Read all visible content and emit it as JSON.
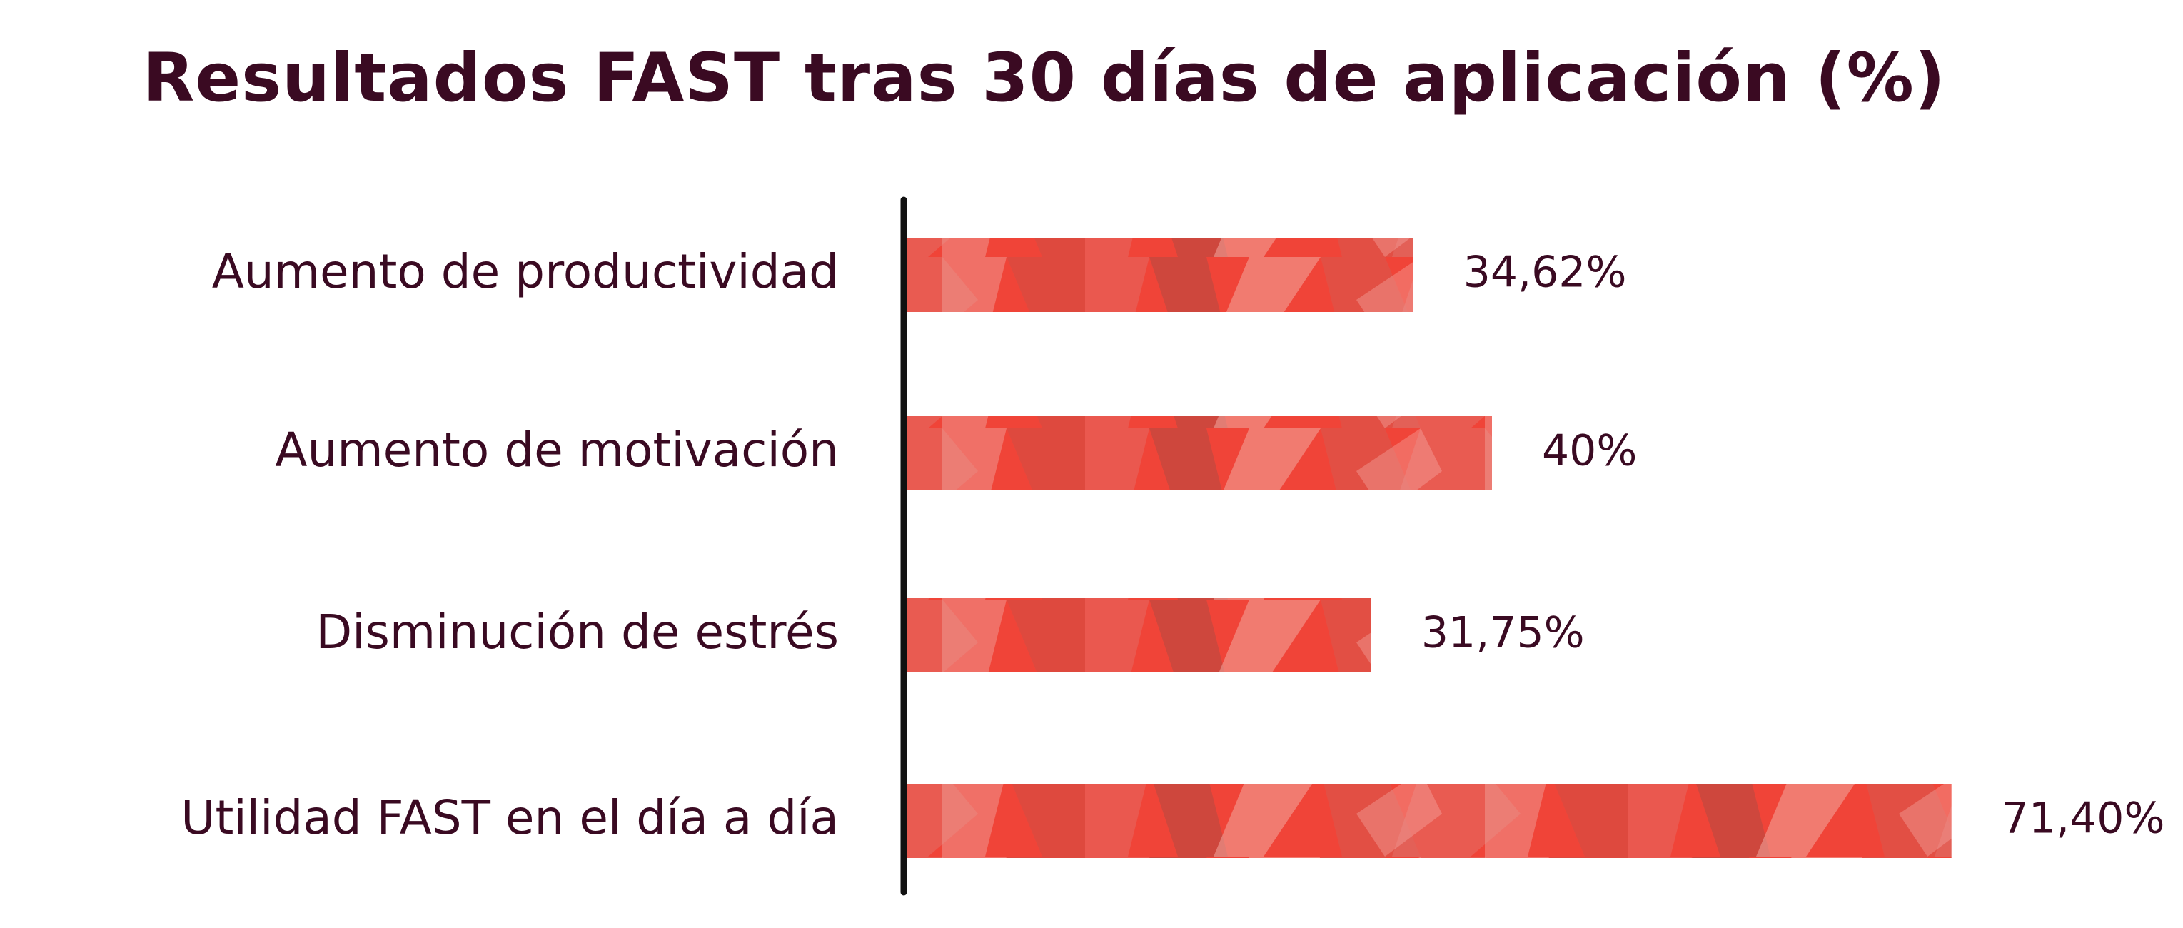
{
  "chart_data": {
    "type": "bar",
    "orientation": "horizontal",
    "title": "Resultados FAST tras 30 días de aplicación (%)",
    "categories": [
      "Aumento de productividad",
      "Aumento de motivación",
      "Disminución de estrés",
      "Utilidad FAST  en el día a día"
    ],
    "values": [
      34.62,
      40,
      31.75,
      71.4
    ],
    "value_labels": [
      "34,62%",
      "40%",
      "31,75%",
      "71,40%"
    ],
    "xlim": [
      0,
      100
    ],
    "grid": false,
    "legend": "none",
    "colors": {
      "bar": "#f04438",
      "bar_dark": "#c8483e",
      "bar_light": "#f1a79f",
      "text": "#3a0a22",
      "axis": "#111111"
    }
  }
}
